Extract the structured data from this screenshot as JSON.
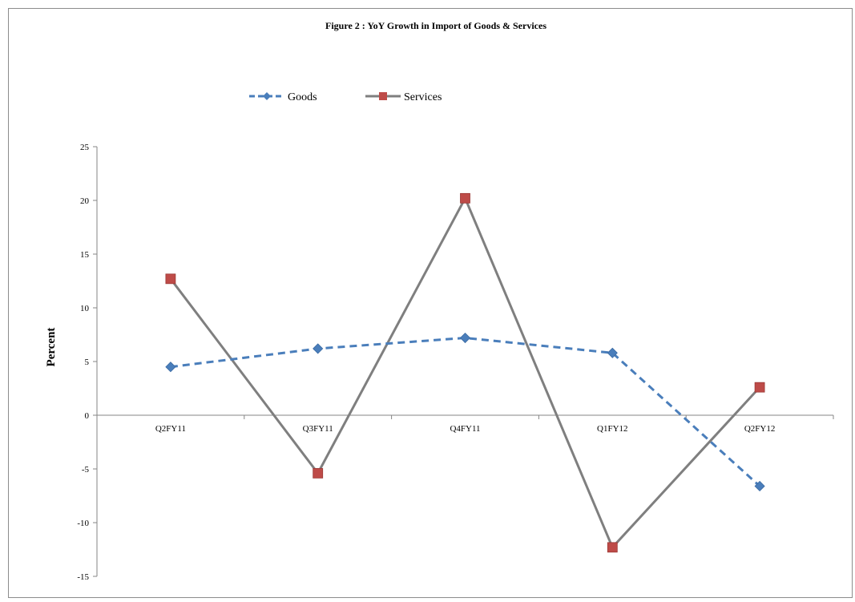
{
  "chart_data": {
    "type": "line",
    "title": "Figure 2 : YoY Growth in Import of Goods & Services",
    "xlabel": "",
    "ylabel": "Percent",
    "categories": [
      "Q2FY11",
      "Q3FY11",
      "Q4FY11",
      "Q1FY12",
      "Q2FY12"
    ],
    "ylim": [
      -15,
      25
    ],
    "yticks": [
      25,
      20,
      15,
      10,
      5,
      0,
      -5,
      -10,
      -15
    ],
    "grid": false,
    "legend_position": "top-left",
    "series": [
      {
        "name": "Goods",
        "values": [
          4.5,
          6.2,
          7.2,
          5.8,
          -6.6
        ],
        "color": "#4a7ebb",
        "line_style": "dashed",
        "marker": "diamond"
      },
      {
        "name": "Services",
        "values": [
          12.7,
          -5.4,
          20.2,
          -12.3,
          2.6
        ],
        "color": "#7f7f7f",
        "line_style": "solid",
        "marker": "square",
        "marker_color": "#be4b48"
      }
    ]
  }
}
